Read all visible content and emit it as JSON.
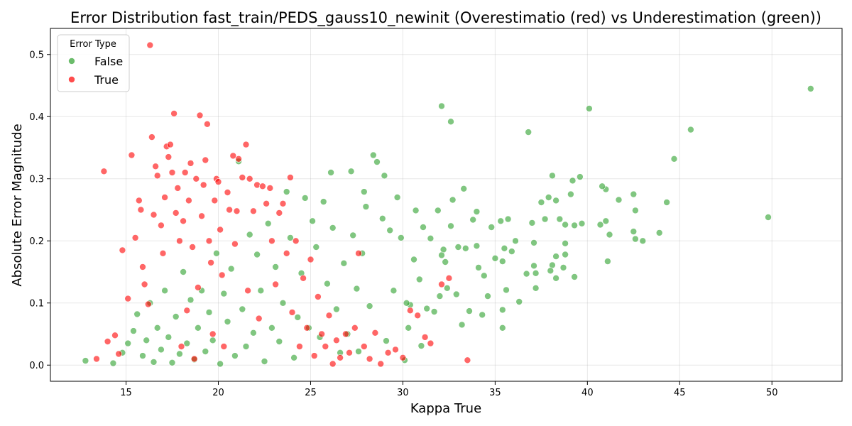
{
  "chart_data": {
    "type": "scatter",
    "title": "Error Distribution fast_train/PEDS_gauss10_newinit (Overestimatio (red) vs Underestimation (green))",
    "xlabel": "Kappa True",
    "ylabel": "Absolute Error Magnitude",
    "xlim": [
      10.9,
      53.8
    ],
    "ylim": [
      -0.026,
      0.542
    ],
    "xticks": [
      15,
      20,
      25,
      30,
      35,
      40,
      45,
      50
    ],
    "yticks": [
      0.0,
      0.1,
      0.2,
      0.3,
      0.4,
      0.5
    ],
    "grid": true,
    "legend": {
      "title": "Error Type",
      "placement": "top-left"
    },
    "series": [
      {
        "name": "False",
        "color": "#2ca02c",
        "points": [
          [
            12.8,
            0.007
          ],
          [
            14.3,
            0.003
          ],
          [
            52.1,
            0.445
          ],
          [
            49.8,
            0.238
          ],
          [
            45.6,
            0.379
          ],
          [
            44.7,
            0.332
          ],
          [
            44.3,
            0.262
          ],
          [
            43.9,
            0.213
          ],
          [
            43.0,
            0.2
          ],
          [
            42.6,
            0.249
          ],
          [
            42.5,
            0.215
          ],
          [
            42.5,
            0.275
          ],
          [
            42.6,
            0.203
          ],
          [
            41.7,
            0.266
          ],
          [
            41.2,
            0.21
          ],
          [
            41.1,
            0.167
          ],
          [
            41.0,
            0.232
          ],
          [
            41.0,
            0.283
          ],
          [
            40.8,
            0.288
          ],
          [
            40.7,
            0.226
          ],
          [
            40.1,
            0.413
          ],
          [
            39.7,
            0.228
          ],
          [
            39.6,
            0.303
          ],
          [
            39.3,
            0.225
          ],
          [
            39.3,
            0.142
          ],
          [
            39.2,
            0.297
          ],
          [
            39.1,
            0.275
          ],
          [
            38.8,
            0.226
          ],
          [
            38.8,
            0.178
          ],
          [
            38.8,
            0.196
          ],
          [
            38.7,
            0.157
          ],
          [
            38.5,
            0.235
          ],
          [
            38.3,
            0.175
          ],
          [
            38.3,
            0.14
          ],
          [
            38.3,
            0.265
          ],
          [
            38.1,
            0.305
          ],
          [
            38.1,
            0.161
          ],
          [
            38.0,
            0.152
          ],
          [
            37.9,
            0.27
          ],
          [
            37.7,
            0.235
          ],
          [
            37.5,
            0.262
          ],
          [
            37.2,
            0.124
          ],
          [
            37.2,
            0.148
          ],
          [
            37.1,
            0.197
          ],
          [
            37.1,
            0.16
          ],
          [
            37.0,
            0.229
          ],
          [
            36.8,
            0.375
          ],
          [
            36.7,
            0.147
          ],
          [
            36.3,
            0.102
          ],
          [
            36.1,
            0.2
          ],
          [
            35.9,
            0.183
          ],
          [
            35.7,
            0.235
          ],
          [
            35.6,
            0.121
          ],
          [
            35.5,
            0.188
          ],
          [
            35.4,
            0.06
          ],
          [
            35.4,
            0.089
          ],
          [
            35.4,
            0.167
          ],
          [
            35.3,
            0.232
          ],
          [
            35.0,
            0.172
          ],
          [
            34.8,
            0.222
          ],
          [
            34.6,
            0.111
          ],
          [
            34.4,
            0.144
          ],
          [
            34.3,
            0.081
          ],
          [
            34.1,
            0.157
          ],
          [
            34.0,
            0.247
          ],
          [
            34.0,
            0.192
          ],
          [
            33.8,
            0.234
          ],
          [
            33.6,
            0.087
          ],
          [
            33.4,
            0.188
          ],
          [
            33.3,
            0.284
          ],
          [
            33.2,
            0.065
          ],
          [
            33.0,
            0.19
          ],
          [
            32.9,
            0.114
          ],
          [
            32.7,
            0.266
          ],
          [
            32.6,
            0.392
          ],
          [
            32.6,
            0.224
          ],
          [
            32.4,
            0.124
          ],
          [
            32.3,
            0.166
          ],
          [
            32.2,
            0.186
          ],
          [
            32.1,
            0.417
          ],
          [
            32.1,
            0.177
          ],
          [
            32.0,
            0.111
          ],
          [
            31.9,
            0.249
          ],
          [
            31.7,
            0.086
          ],
          [
            31.5,
            0.204
          ],
          [
            31.3,
            0.091
          ],
          [
            31.1,
            0.222
          ],
          [
            31.0,
            0.031
          ],
          [
            30.9,
            0.138
          ],
          [
            30.7,
            0.249
          ],
          [
            30.6,
            0.17
          ],
          [
            30.4,
            0.097
          ],
          [
            30.3,
            0.06
          ],
          [
            30.2,
            0.1
          ],
          [
            30.1,
            0.008
          ],
          [
            29.9,
            0.205
          ],
          [
            29.7,
            0.27
          ],
          [
            29.5,
            0.12
          ],
          [
            29.3,
            0.217
          ],
          [
            29.1,
            0.039
          ],
          [
            29.0,
            0.305
          ],
          [
            28.9,
            0.236
          ],
          [
            28.6,
            0.327
          ],
          [
            28.4,
            0.338
          ],
          [
            28.2,
            0.095
          ],
          [
            28.0,
            0.255
          ],
          [
            27.9,
            0.279
          ],
          [
            27.8,
            0.18
          ],
          [
            27.6,
            0.022
          ],
          [
            27.5,
            0.123
          ],
          [
            27.3,
            0.209
          ],
          [
            27.2,
            0.312
          ],
          [
            27.0,
            0.05
          ],
          [
            26.8,
            0.164
          ],
          [
            26.6,
            0.02
          ],
          [
            26.4,
            0.09
          ],
          [
            26.2,
            0.221
          ],
          [
            26.1,
            0.31
          ],
          [
            25.9,
            0.131
          ],
          [
            25.7,
            0.263
          ],
          [
            25.5,
            0.045
          ],
          [
            25.3,
            0.19
          ],
          [
            25.1,
            0.232
          ],
          [
            24.9,
            0.06
          ],
          [
            24.7,
            0.269
          ],
          [
            24.5,
            0.148
          ],
          [
            24.3,
            0.077
          ],
          [
            24.1,
            0.012
          ],
          [
            23.9,
            0.205
          ],
          [
            23.7,
            0.279
          ],
          [
            23.5,
            0.1
          ],
          [
            23.3,
            0.038
          ],
          [
            23.1,
            0.158
          ],
          [
            22.9,
            0.06
          ],
          [
            22.7,
            0.228
          ],
          [
            22.5,
            0.006
          ],
          [
            22.3,
            0.12
          ],
          [
            22.1,
            0.178
          ],
          [
            21.9,
            0.052
          ],
          [
            21.7,
            0.21
          ],
          [
            21.5,
            0.03
          ],
          [
            21.3,
            0.09
          ],
          [
            21.1,
            0.328
          ],
          [
            20.9,
            0.015
          ],
          [
            20.7,
            0.155
          ],
          [
            20.5,
            0.07
          ],
          [
            20.3,
            0.115
          ],
          [
            20.1,
            0.002
          ],
          [
            19.9,
            0.18
          ],
          [
            19.7,
            0.04
          ],
          [
            19.5,
            0.085
          ],
          [
            19.3,
            0.022
          ],
          [
            19.1,
            0.12
          ],
          [
            18.9,
            0.06
          ],
          [
            18.7,
            0.009
          ],
          [
            18.5,
            0.105
          ],
          [
            18.3,
            0.035
          ],
          [
            18.1,
            0.15
          ],
          [
            17.9,
            0.018
          ],
          [
            17.7,
            0.078
          ],
          [
            17.5,
            0.004
          ],
          [
            17.3,
            0.045
          ],
          [
            17.1,
            0.12
          ],
          [
            16.9,
            0.025
          ],
          [
            16.7,
            0.06
          ],
          [
            16.5,
            0.005
          ],
          [
            16.3,
            0.1
          ],
          [
            16.1,
            0.04
          ],
          [
            15.9,
            0.015
          ],
          [
            15.6,
            0.082
          ],
          [
            15.4,
            0.055
          ],
          [
            15.1,
            0.035
          ],
          [
            14.8,
            0.02
          ]
        ]
      },
      {
        "name": "True",
        "color": "#ff0000",
        "points": [
          [
            16.3,
            0.515
          ],
          [
            13.8,
            0.312
          ],
          [
            13.4,
            0.01
          ],
          [
            14.0,
            0.038
          ],
          [
            14.4,
            0.048
          ],
          [
            14.6,
            0.018
          ],
          [
            14.8,
            0.185
          ],
          [
            15.1,
            0.107
          ],
          [
            15.3,
            0.338
          ],
          [
            15.5,
            0.205
          ],
          [
            15.7,
            0.265
          ],
          [
            15.8,
            0.25
          ],
          [
            15.9,
            0.158
          ],
          [
            16.0,
            0.13
          ],
          [
            16.2,
            0.098
          ],
          [
            16.4,
            0.367
          ],
          [
            16.5,
            0.242
          ],
          [
            16.6,
            0.32
          ],
          [
            16.7,
            0.305
          ],
          [
            16.9,
            0.225
          ],
          [
            17.0,
            0.18
          ],
          [
            17.1,
            0.27
          ],
          [
            17.2,
            0.352
          ],
          [
            17.3,
            0.335
          ],
          [
            17.4,
            0.355
          ],
          [
            17.5,
            0.31
          ],
          [
            17.6,
            0.405
          ],
          [
            17.7,
            0.245
          ],
          [
            17.8,
            0.285
          ],
          [
            17.9,
            0.2
          ],
          [
            18.0,
            0.03
          ],
          [
            18.1,
            0.232
          ],
          [
            18.2,
            0.31
          ],
          [
            18.3,
            0.088
          ],
          [
            18.4,
            0.265
          ],
          [
            18.5,
            0.325
          ],
          [
            18.6,
            0.19
          ],
          [
            18.7,
            0.01
          ],
          [
            18.8,
            0.3
          ],
          [
            18.9,
            0.125
          ],
          [
            19.0,
            0.402
          ],
          [
            19.1,
            0.24
          ],
          [
            19.2,
            0.29
          ],
          [
            19.3,
            0.33
          ],
          [
            19.4,
            0.388
          ],
          [
            19.5,
            0.2
          ],
          [
            19.6,
            0.165
          ],
          [
            19.7,
            0.05
          ],
          [
            19.8,
            0.265
          ],
          [
            19.9,
            0.3
          ],
          [
            20.0,
            0.295
          ],
          [
            20.1,
            0.218
          ],
          [
            20.2,
            0.145
          ],
          [
            20.3,
            0.03
          ],
          [
            20.5,
            0.278
          ],
          [
            20.6,
            0.25
          ],
          [
            20.8,
            0.337
          ],
          [
            20.9,
            0.195
          ],
          [
            21.0,
            0.248
          ],
          [
            21.1,
            0.332
          ],
          [
            21.3,
            0.302
          ],
          [
            21.5,
            0.355
          ],
          [
            21.6,
            0.12
          ],
          [
            21.7,
            0.3
          ],
          [
            21.9,
            0.248
          ],
          [
            22.1,
            0.29
          ],
          [
            22.2,
            0.075
          ],
          [
            22.4,
            0.288
          ],
          [
            22.6,
            0.26
          ],
          [
            22.8,
            0.285
          ],
          [
            22.9,
            0.2
          ],
          [
            23.1,
            0.13
          ],
          [
            23.3,
            0.245
          ],
          [
            23.5,
            0.26
          ],
          [
            23.7,
            0.18
          ],
          [
            23.9,
            0.302
          ],
          [
            24.0,
            0.085
          ],
          [
            24.2,
            0.2
          ],
          [
            24.4,
            0.03
          ],
          [
            24.6,
            0.14
          ],
          [
            24.8,
            0.06
          ],
          [
            25.0,
            0.17
          ],
          [
            25.2,
            0.015
          ],
          [
            25.4,
            0.11
          ],
          [
            25.6,
            0.05
          ],
          [
            25.8,
            0.03
          ],
          [
            26.0,
            0.08
          ],
          [
            26.2,
            0.002
          ],
          [
            26.4,
            0.04
          ],
          [
            26.6,
            0.012
          ],
          [
            26.9,
            0.05
          ],
          [
            27.1,
            0.02
          ],
          [
            27.4,
            0.06
          ],
          [
            27.6,
            0.18
          ],
          [
            27.9,
            0.03
          ],
          [
            28.2,
            0.01
          ],
          [
            28.5,
            0.052
          ],
          [
            28.8,
            0.002
          ],
          [
            29.2,
            0.02
          ],
          [
            29.6,
            0.025
          ],
          [
            30.0,
            0.012
          ],
          [
            30.4,
            0.088
          ],
          [
            30.8,
            0.08
          ],
          [
            31.2,
            0.045
          ],
          [
            31.5,
            0.035
          ],
          [
            32.1,
            0.13
          ],
          [
            32.5,
            0.14
          ],
          [
            33.5,
            0.008
          ]
        ]
      }
    ]
  }
}
